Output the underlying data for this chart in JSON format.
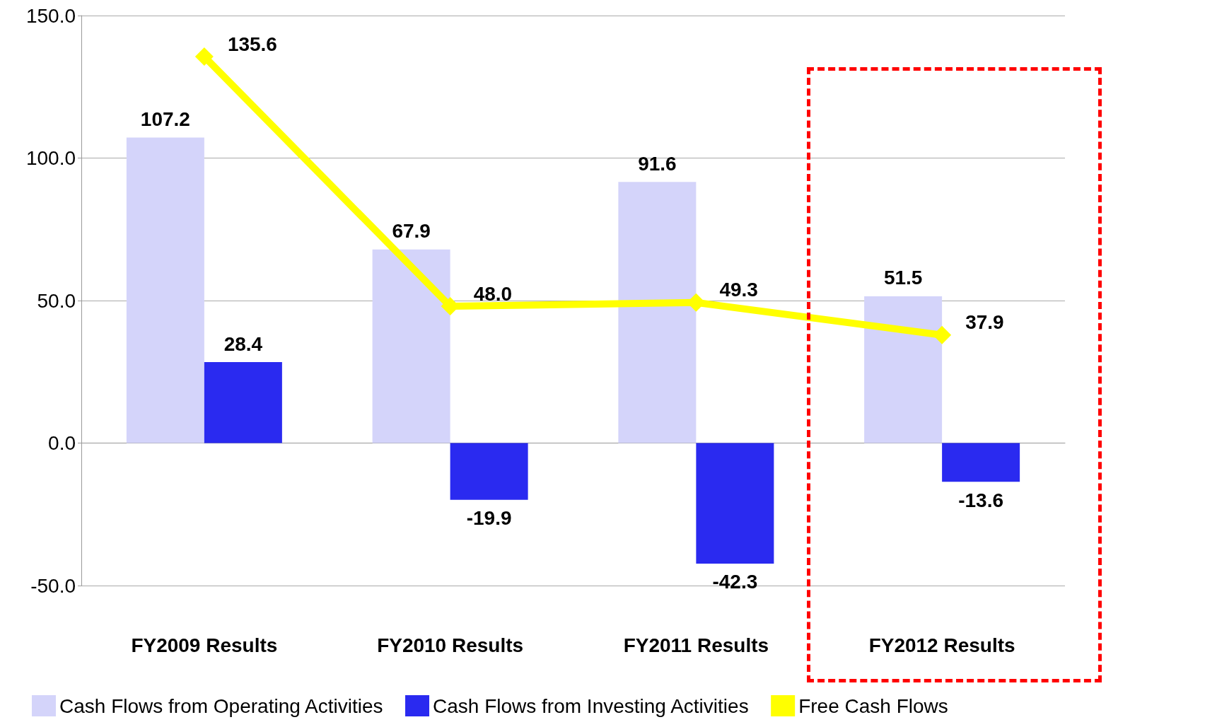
{
  "chart_data": {
    "type": "bar",
    "categories": [
      "FY2009 Results",
      "FY2010 Results",
      "FY2011 Results",
      "FY2012 Results"
    ],
    "series": [
      {
        "name": "Cash Flows from Operating Activities",
        "color": "#d4d4fa",
        "values": [
          107.2,
          67.9,
          91.6,
          51.5
        ],
        "value_labels": [
          "107.2",
          "67.9",
          "91.6",
          "51.5"
        ]
      },
      {
        "name": "Cash Flows from Investing Activities",
        "color": "#2a2af0",
        "values": [
          28.4,
          -19.9,
          -42.3,
          -13.6
        ],
        "value_labels": [
          "28.4",
          "-19.9",
          "-42.3",
          "-13.6"
        ]
      },
      {
        "name": "Free Cash Flows",
        "type": "line",
        "color": "#ffff00",
        "values": [
          135.6,
          48.0,
          49.3,
          37.9
        ],
        "value_labels": [
          "135.6",
          "48.0",
          "49.3",
          "37.9"
        ],
        "marker": "diamond"
      }
    ],
    "ylim": [
      -50,
      150
    ],
    "yticks": [
      {
        "value": -50,
        "label": "-50.0"
      },
      {
        "value": 0,
        "label": "0.0"
      },
      {
        "value": 50,
        "label": "50.0"
      },
      {
        "value": 100,
        "label": "100.0"
      },
      {
        "value": 150,
        "label": "150.0"
      }
    ],
    "grid": "y",
    "legend": "bottom"
  }
}
